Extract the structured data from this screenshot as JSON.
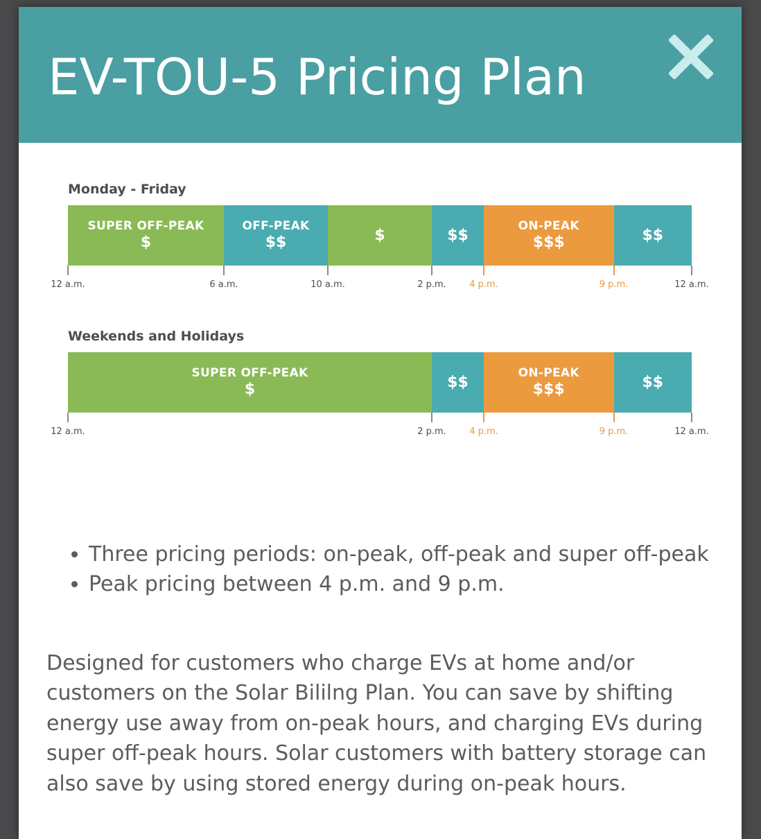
{
  "modal": {
    "title": "EV-TOU-5 Pricing Plan",
    "close_icon": "close-icon",
    "header_color": "#4a9fa3"
  },
  "colors": {
    "green": "#8aba55",
    "teal": "#4aabb0",
    "orange": "#eb9a3e",
    "tick_orange": "#e8993a"
  },
  "weekday": {
    "label": "Monday - Friday",
    "segments": [
      {
        "name": "SUPER OFF-PEAK",
        "price": "$",
        "color": "green",
        "start": 0,
        "end": 6
      },
      {
        "name": "OFF-PEAK",
        "price": "$$",
        "color": "teal",
        "start": 6,
        "end": 10
      },
      {
        "name": "",
        "price": "$",
        "color": "green",
        "start": 10,
        "end": 14
      },
      {
        "name": "",
        "price": "$$",
        "color": "teal",
        "start": 14,
        "end": 16
      },
      {
        "name": "ON-PEAK",
        "price": "$$$",
        "color": "orange",
        "start": 16,
        "end": 21
      },
      {
        "name": "",
        "price": "$$",
        "color": "teal",
        "start": 21,
        "end": 24
      }
    ],
    "ticks": [
      {
        "hour": 0,
        "label": "12 a.m.",
        "highlight": false
      },
      {
        "hour": 6,
        "label": "6 a.m.",
        "highlight": false
      },
      {
        "hour": 10,
        "label": "10 a.m.",
        "highlight": false
      },
      {
        "hour": 14,
        "label": "2 p.m.",
        "highlight": false
      },
      {
        "hour": 16,
        "label": "4 p.m.",
        "highlight": true
      },
      {
        "hour": 21,
        "label": "9 p.m.",
        "highlight": true
      },
      {
        "hour": 24,
        "label": "12 a.m.",
        "highlight": false
      }
    ]
  },
  "weekend": {
    "label": "Weekends and Holidays",
    "segments": [
      {
        "name": "SUPER OFF-PEAK",
        "price": "$",
        "color": "green",
        "start": 0,
        "end": 14
      },
      {
        "name": "",
        "price": "$$",
        "color": "teal",
        "start": 14,
        "end": 16
      },
      {
        "name": "ON-PEAK",
        "price": "$$$",
        "color": "orange",
        "start": 16,
        "end": 21
      },
      {
        "name": "",
        "price": "$$",
        "color": "teal",
        "start": 21,
        "end": 24
      }
    ],
    "ticks": [
      {
        "hour": 0,
        "label": "12 a.m.",
        "highlight": false
      },
      {
        "hour": 14,
        "label": "2 p.m.",
        "highlight": false
      },
      {
        "hour": 16,
        "label": "4 p.m.",
        "highlight": true
      },
      {
        "hour": 21,
        "label": "9 p.m.",
        "highlight": true
      },
      {
        "hour": 24,
        "label": "12 a.m.",
        "highlight": false
      }
    ]
  },
  "bullets": [
    "Three pricing periods: on-peak, off-peak and super off-peak",
    "Peak pricing between 4 p.m. and 9 p.m."
  ],
  "description": "Designed for customers who charge EVs at home and/or customers on the Solar Bililng Plan. You can save by shifting energy use away from on-peak hours, and charging EVs during super off-peak hours. Solar customers with battery storage can also save by using stored energy during on-peak hours."
}
